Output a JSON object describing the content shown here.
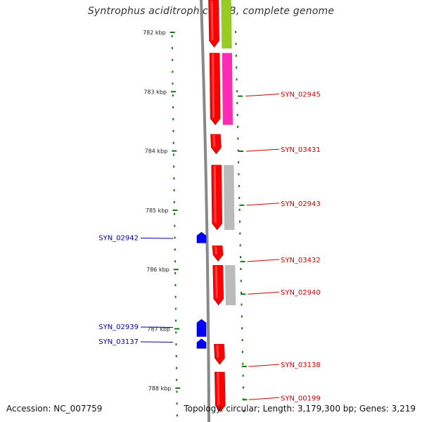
{
  "title": "Syntrophus aciditrophicus SB, complete genome",
  "footer": {
    "accession": "Accession: NC_007759",
    "summary": "Topology: circular; Length: 3,179,300 bp; Genes: 3,219"
  },
  "colors": {
    "background": "#ffffff",
    "backbone": "#888888",
    "tick": "#117711",
    "forward_gene": "#ff0000",
    "reverse_gene": "#0000ff",
    "forward_label": "#cc0000",
    "reverse_label": "#0000aa",
    "feature_gray": "#bbbbbb",
    "feature_magenta": "#ff2bb5",
    "feature_green": "#99cc22",
    "ruler_label": "#222222"
  },
  "ruler": {
    "unit": "kbp",
    "labels": [
      "782 kbp",
      "783 kbp",
      "784 kbp",
      "785 kbp",
      "786 kbp",
      "787 kbp",
      "788 kbp"
    ],
    "positions_kbp": [
      782,
      783,
      784,
      785,
      786,
      787,
      788
    ]
  },
  "forward_genes": [
    {
      "label": "SYN_02945",
      "start_kbp": 781.38,
      "end_kbp": 782.25,
      "labeled": false
    },
    {
      "label": "SYN_02945",
      "start_kbp": 782.35,
      "end_kbp": 783.56,
      "labeled": true
    },
    {
      "label": "SYN_03431",
      "start_kbp": 783.72,
      "end_kbp": 784.05,
      "labeled": true
    },
    {
      "label": "SYN_02943",
      "start_kbp": 784.24,
      "end_kbp": 785.33,
      "labeled": true
    },
    {
      "label": "SYN_03432",
      "start_kbp": 785.6,
      "end_kbp": 785.86,
      "labeled": true
    },
    {
      "label": "SYN_02940",
      "start_kbp": 785.93,
      "end_kbp": 786.6,
      "labeled": true
    },
    {
      "label": "SYN_03138",
      "start_kbp": 787.26,
      "end_kbp": 787.6,
      "labeled": true
    },
    {
      "label": "SYN_00199",
      "start_kbp": 787.73,
      "end_kbp": 788.4,
      "labeled": false
    }
  ],
  "reverse_genes": [
    {
      "label": "SYN_02942",
      "start_kbp": 785.37,
      "end_kbp": 785.55
    },
    {
      "label": "SYN_02939",
      "start_kbp": 786.84,
      "end_kbp": 787.13
    },
    {
      "label": "SYN_03137",
      "start_kbp": 787.17,
      "end_kbp": 787.33
    }
  ],
  "features": [
    {
      "kind": "green",
      "start_kbp": 781.38,
      "end_kbp": 782.27
    },
    {
      "kind": "magenta",
      "start_kbp": 782.35,
      "end_kbp": 783.56
    },
    {
      "kind": "gray",
      "start_kbp": 784.24,
      "end_kbp": 785.33
    },
    {
      "kind": "gray",
      "start_kbp": 785.93,
      "end_kbp": 786.6
    }
  ],
  "gene_labels_right": [
    {
      "text": "SYN_02945",
      "kbp": 783.04
    },
    {
      "text": "SYN_03431",
      "kbp": 783.97
    },
    {
      "text": "SYN_02943",
      "kbp": 784.88
    },
    {
      "text": "SYN_03432",
      "kbp": 785.83
    },
    {
      "text": "SYN_02940",
      "kbp": 786.38
    },
    {
      "text": "SYN_03138",
      "kbp": 787.6
    },
    {
      "text": "SYN_00199",
      "kbp": 788.16
    }
  ],
  "gene_labels_left": [
    {
      "text": "SYN_02942",
      "kbp": 785.47
    },
    {
      "text": "SYN_02939",
      "kbp": 786.97
    },
    {
      "text": "SYN_03137",
      "kbp": 787.22
    }
  ]
}
